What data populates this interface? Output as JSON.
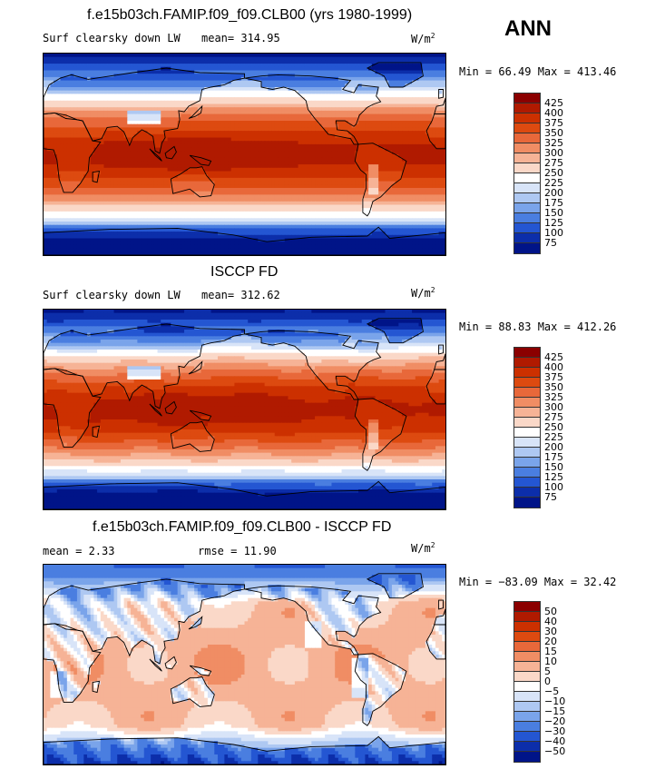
{
  "season": "ANN",
  "panels": [
    {
      "title": "f.e15b03ch.FAMIP.f09_f09.CLB00 (yrs 1980-1999)",
      "variable": "Surf clearsky down LW",
      "stat1": "mean= 314.95",
      "stat2": "",
      "units_base": "W/m",
      "units_exp": "2",
      "minmax": "Min =  66.49 Max = 413.46",
      "colorbar": {
        "labels": [
          "425",
          "400",
          "375",
          "350",
          "325",
          "300",
          "275",
          "250",
          "225",
          "200",
          "175",
          "150",
          "125",
          "100",
          "75"
        ],
        "colors": [
          "#8b0000",
          "#b01a00",
          "#cc3000",
          "#dd4a10",
          "#e8683a",
          "#f08d64",
          "#f6b396",
          "#fad8c8",
          "#ffffff",
          "#d8e4f8",
          "#aec8f2",
          "#7aa4ea",
          "#4a7ee0",
          "#2456d2",
          "#0c2eaa",
          "#001488"
        ]
      },
      "field": "abs"
    },
    {
      "title": "ISCCP FD",
      "variable": "Surf clearsky down LW",
      "stat1": "mean= 312.62",
      "stat2": "",
      "units_base": "W/m",
      "units_exp": "2",
      "minmax": "Min =  88.83 Max = 412.26",
      "colorbar": {
        "labels": [
          "425",
          "400",
          "375",
          "350",
          "325",
          "300",
          "275",
          "250",
          "225",
          "200",
          "175",
          "150",
          "125",
          "100",
          "75"
        ],
        "colors": [
          "#8b0000",
          "#b01a00",
          "#cc3000",
          "#dd4a10",
          "#e8683a",
          "#f08d64",
          "#f6b396",
          "#fad8c8",
          "#ffffff",
          "#d8e4f8",
          "#aec8f2",
          "#7aa4ea",
          "#4a7ee0",
          "#2456d2",
          "#0c2eaa",
          "#001488"
        ]
      },
      "field": "abs"
    },
    {
      "title": "f.e15b03ch.FAMIP.f09_f09.CLB00 - ISCCP FD",
      "variable": "",
      "stat1": "mean =   2.33",
      "stat2": "rmse =  11.90",
      "units_base": "W/m",
      "units_exp": "2",
      "minmax": "Min = −83.09 Max =  32.42",
      "colorbar": {
        "labels": [
          "50",
          "40",
          "30",
          "20",
          "15",
          "10",
          "5",
          "0",
          "−5",
          "−10",
          "−15",
          "−20",
          "−30",
          "−40",
          "−50"
        ],
        "colors": [
          "#8b0000",
          "#b01a00",
          "#cc3000",
          "#dd4a10",
          "#e8683a",
          "#f08d64",
          "#f6b396",
          "#fad8c8",
          "#ffffff",
          "#d8e4f8",
          "#aec8f2",
          "#7aa4ea",
          "#4a7ee0",
          "#2456d2",
          "#0c2eaa",
          "#001488"
        ]
      },
      "field": "diff"
    }
  ]
}
